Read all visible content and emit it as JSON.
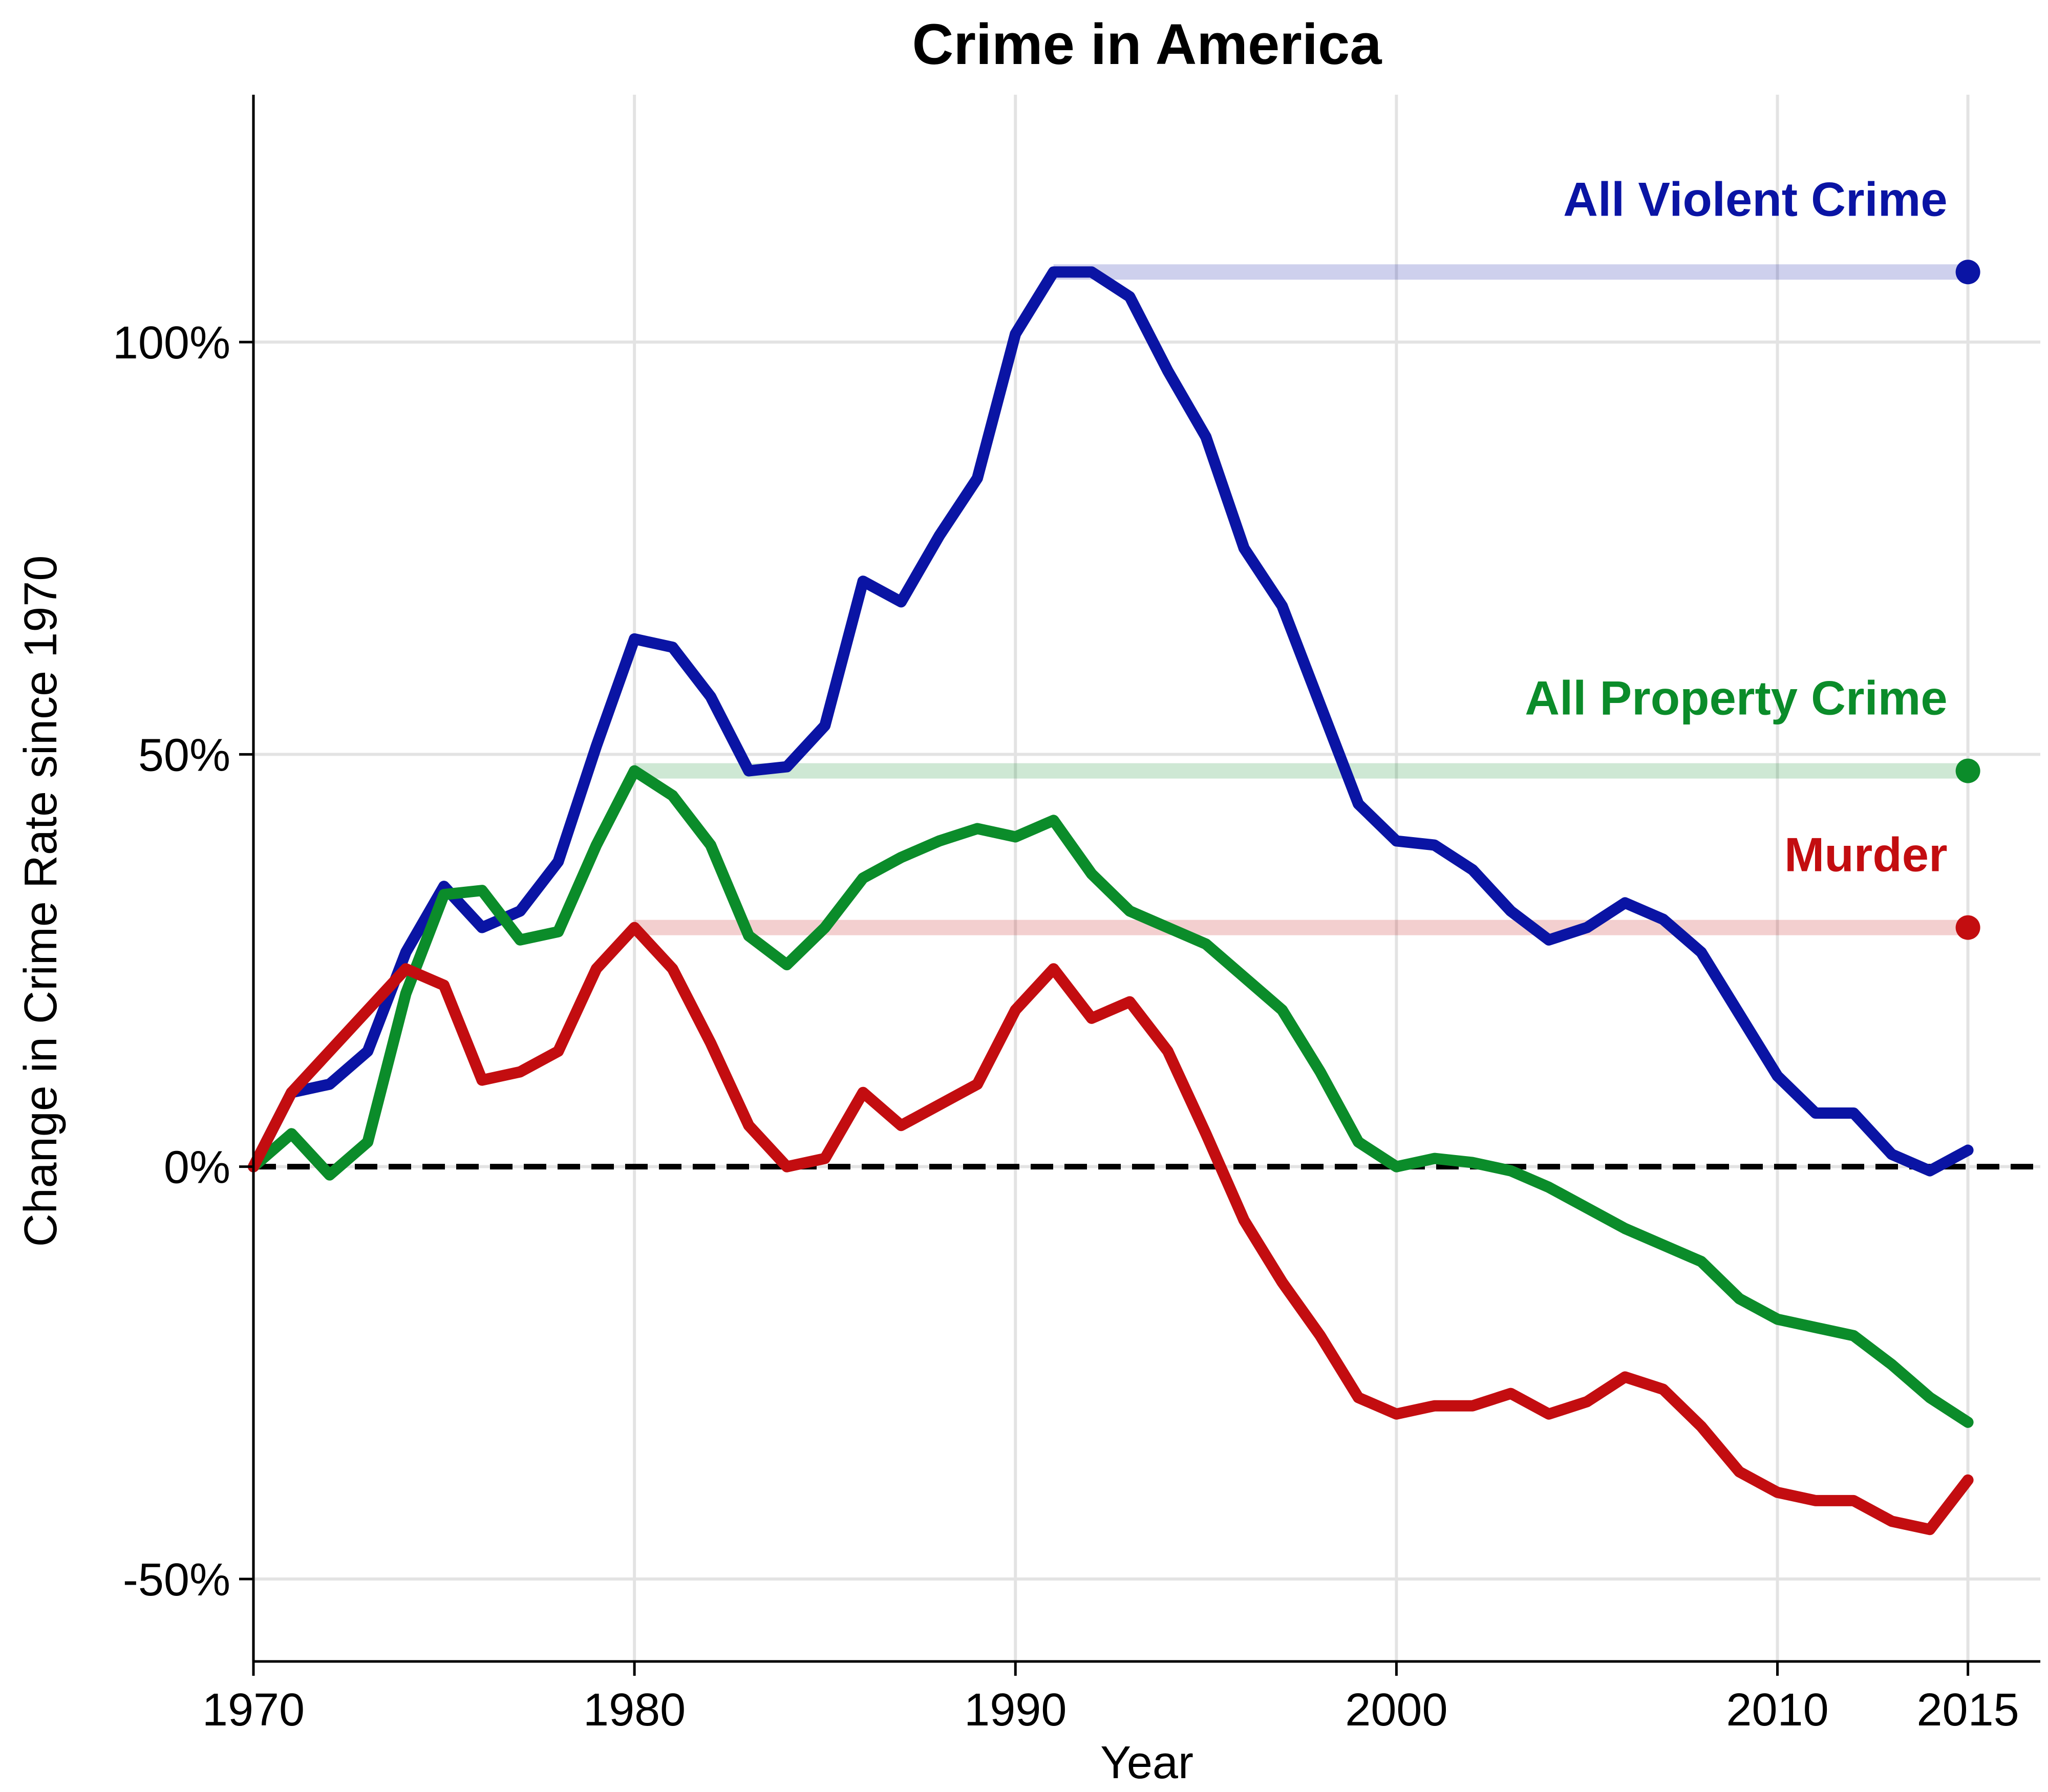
{
  "chart_data": {
    "type": "line",
    "title": "Crime in America",
    "xlabel": "Year",
    "ylabel": "Change in Crime Rate since 1970",
    "xlim": [
      1970,
      2016.9
    ],
    "ylim": [
      -60,
      130
    ],
    "x_ticks": [
      1970,
      1980,
      1990,
      2000,
      2010,
      2015
    ],
    "x_tick_labels": [
      "1970",
      "1980",
      "1990",
      "2000",
      "2010",
      "2015"
    ],
    "y_ticks": [
      -50,
      0,
      50,
      100
    ],
    "y_tick_labels": [
      "-50%",
      "0%",
      "50%",
      "100%"
    ],
    "grid": true,
    "baseline": 0,
    "years": [
      1970,
      1971,
      1972,
      1973,
      1974,
      1975,
      1976,
      1977,
      1978,
      1979,
      1980,
      1981,
      1982,
      1983,
      1984,
      1985,
      1986,
      1987,
      1988,
      1989,
      1990,
      1991,
      1992,
      1993,
      1994,
      1995,
      1996,
      1997,
      1998,
      1999,
      2000,
      2001,
      2002,
      2003,
      2004,
      2005,
      2006,
      2007,
      2008,
      2009,
      2010,
      2011,
      2012,
      2013,
      2014,
      2015
    ],
    "series": [
      {
        "name": "All Violent Crime",
        "color": "#0a14a4",
        "values": [
          0,
          9,
          10,
          14,
          26,
          34,
          29,
          31,
          37,
          51,
          64,
          63,
          57,
          48,
          48.5,
          53.5,
          71,
          68.5,
          76.5,
          83.5,
          101,
          108.5,
          108.5,
          105.5,
          96.5,
          88.5,
          75,
          68,
          56,
          44,
          39.5,
          39,
          36,
          31,
          27.5,
          29,
          32,
          30,
          26,
          18.5,
          11,
          6.5,
          6.5,
          1.5,
          -0.5,
          2
        ],
        "peak": {
          "year": 1991,
          "value": 108.5
        }
      },
      {
        "name": "All Property Crime",
        "color": "#0b8c2a",
        "values": [
          0,
          4,
          -1,
          3,
          21,
          33,
          33.5,
          27.5,
          28.5,
          39,
          48,
          45,
          39,
          28,
          24.5,
          29,
          35,
          37.5,
          39.5,
          41,
          40,
          42,
          35.5,
          31,
          29,
          27,
          23,
          19,
          11.5,
          3,
          0,
          1,
          0.5,
          -0.5,
          -2.5,
          -5,
          -7.5,
          -9.5,
          -11.5,
          -16,
          -18.5,
          -19.5,
          -20.5,
          -24,
          -28,
          -31
        ],
        "peak": {
          "year": 1980,
          "value": 48
        }
      },
      {
        "name": "Murder",
        "color": "#c30d10",
        "values": [
          0,
          9,
          14,
          19,
          24,
          22,
          10.5,
          11.5,
          14,
          24,
          29,
          24,
          15,
          5,
          0,
          1,
          9,
          5,
          7.5,
          10,
          19,
          24,
          18,
          20,
          14,
          4,
          -6.5,
          -14,
          -20.5,
          -28,
          -30,
          -29,
          -29,
          -27.5,
          -30,
          -28.5,
          -25.5,
          -27,
          -31.5,
          -37,
          -39.5,
          -40.5,
          -40.5,
          -43,
          -44,
          -38
        ],
        "peak": {
          "year": 1980,
          "value": 29
        }
      }
    ]
  }
}
